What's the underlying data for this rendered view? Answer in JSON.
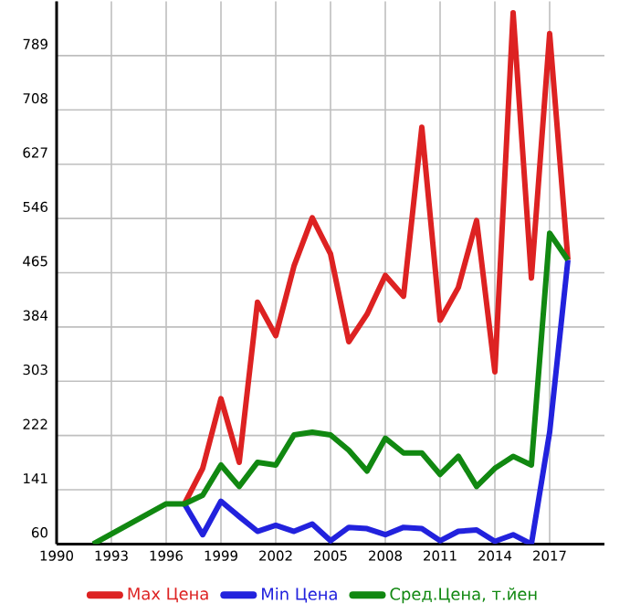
{
  "chart_data": {
    "type": "line",
    "xlim": [
      1990,
      2020
    ],
    "ylim": [
      60,
      870
    ],
    "xticks": [
      1990,
      1993,
      1996,
      1999,
      2002,
      2005,
      2008,
      2011,
      2014,
      2017
    ],
    "yticks": [
      60,
      141,
      222,
      303,
      384,
      465,
      546,
      627,
      708,
      789
    ],
    "grid": true,
    "legend": "bottom",
    "marker": "none",
    "line_style": "solid",
    "series": [
      {
        "name": "Max Цена",
        "color": "#dd2222",
        "x": [
          1997,
          1998,
          1999,
          2000,
          2001,
          2002,
          2003,
          2004,
          2005,
          2006,
          2007,
          2008,
          2009,
          2010,
          2011,
          2012,
          2013,
          2014,
          2015,
          2016,
          2017,
          2018
        ],
        "values": [
          120,
          173,
          277,
          182,
          421,
          371,
          475,
          547,
          493,
          362,
          403,
          461,
          430,
          682,
          394,
          443,
          543,
          317,
          853,
          457,
          822,
          484
        ]
      },
      {
        "name": "Min Цена",
        "color": "#2222dd",
        "x": [
          1997,
          1998,
          1999,
          2000,
          2001,
          2002,
          2003,
          2004,
          2005,
          2006,
          2007,
          2008,
          2009,
          2010,
          2011,
          2012,
          2013,
          2014,
          2015,
          2016,
          2017,
          2018
        ],
        "values": [
          120,
          74,
          124,
          101,
          79,
          88,
          79,
          90,
          65,
          85,
          83,
          74,
          85,
          83,
          65,
          79,
          81,
          64,
          74,
          60,
          227,
          484
        ]
      },
      {
        "name": "Сред.Цена, т.йен",
        "color": "#118811",
        "x": [
          1992,
          1996,
          1997,
          1998,
          1999,
          2000,
          2001,
          2002,
          2003,
          2004,
          2005,
          2006,
          2007,
          2008,
          2009,
          2010,
          2011,
          2012,
          2013,
          2014,
          2015,
          2016,
          2017,
          2018
        ],
        "values": [
          60,
          120,
          120,
          133,
          178,
          146,
          182,
          178,
          223,
          227,
          223,
          200,
          169,
          218,
          196,
          196,
          164,
          191,
          146,
          173,
          191,
          178,
          524,
          484
        ]
      }
    ]
  }
}
